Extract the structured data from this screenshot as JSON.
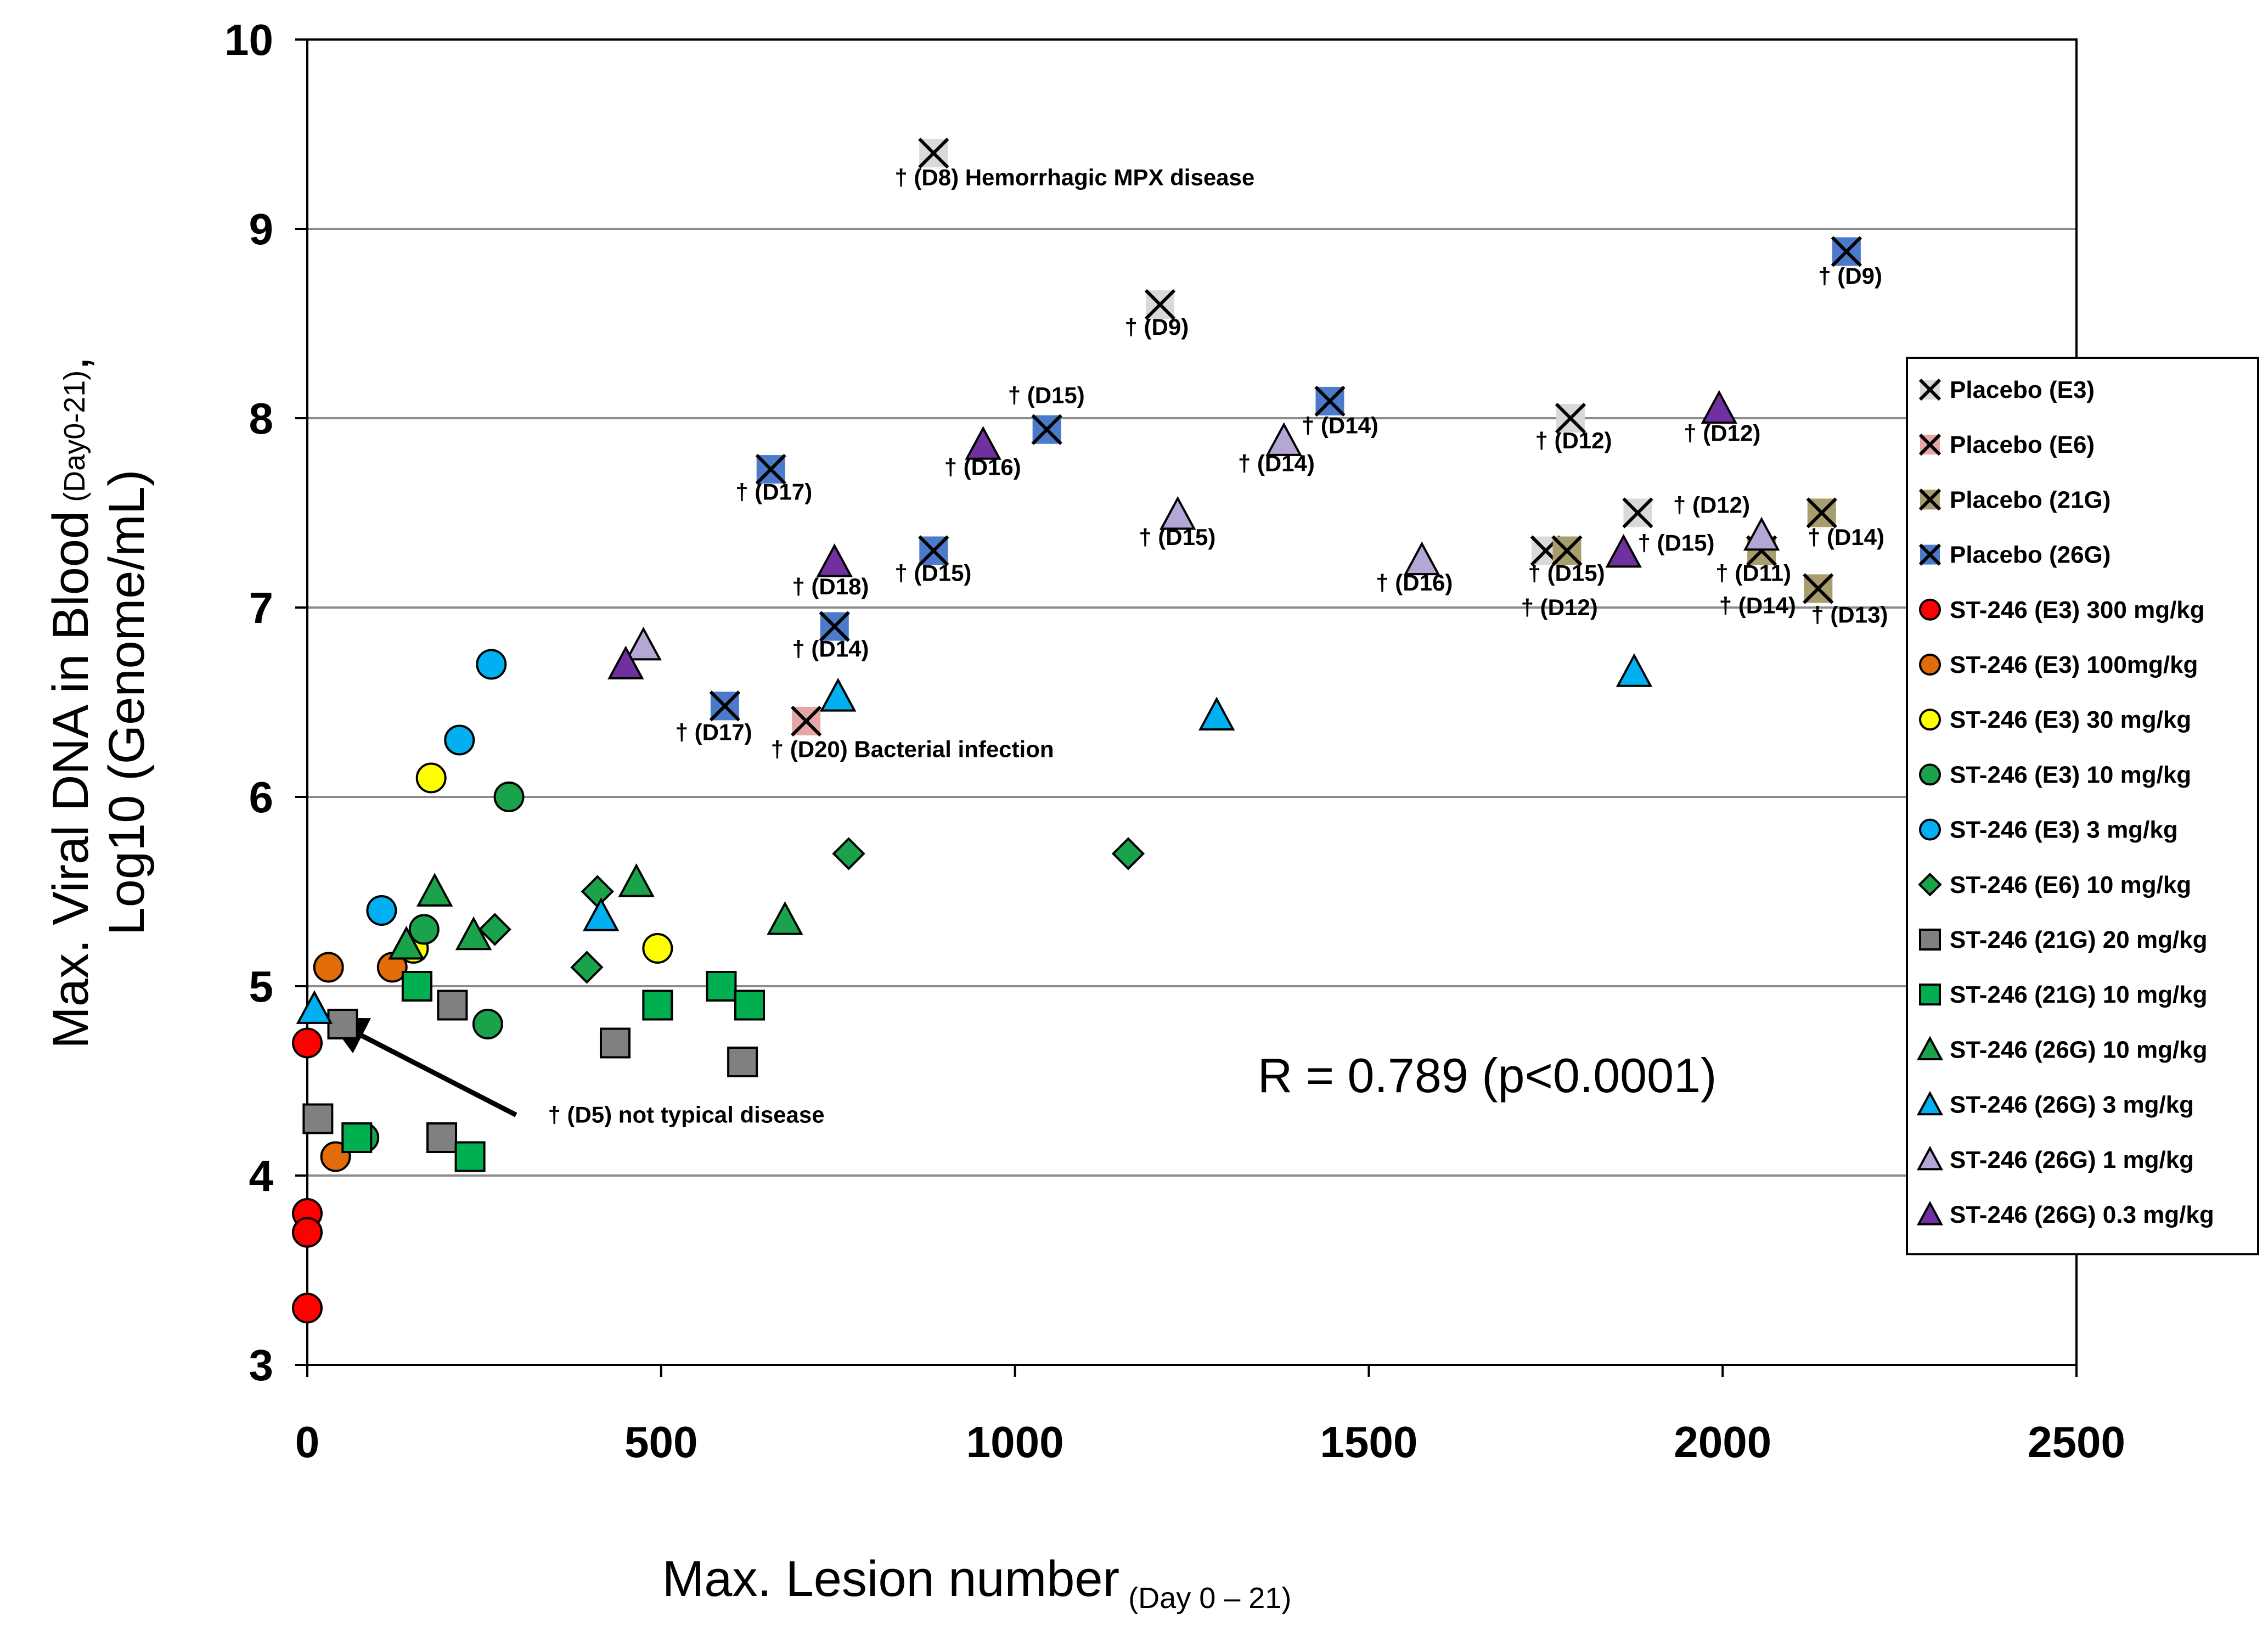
{
  "chart_data": {
    "type": "scatter",
    "xlabel": "Max. Lesion number",
    "xlabel_sub": "(Day 0 – 21)",
    "ylabel_line1": "Max. Viral DNA in Blood",
    "ylabel_line1_sub": "(Day0-21)",
    "ylabel_line1_tail": ",",
    "ylabel_line2": "Log10 (Genome/mL)",
    "xlim": [
      0,
      2500
    ],
    "ylim": [
      3,
      10
    ],
    "x_ticks": [
      0,
      500,
      1000,
      1500,
      2000,
      2500
    ],
    "y_ticks": [
      3,
      4,
      5,
      6,
      7,
      8,
      9,
      10
    ],
    "grid": "horizontal",
    "legend_position": "right",
    "correlation_text": "R = 0.789 (p<0.0001)",
    "series": [
      {
        "name": "Placebo (E3)",
        "marker": "x-square",
        "color": "#d9d9d9",
        "points": [
          [
            885,
            9.4
          ],
          [
            1205,
            8.6
          ],
          [
            1785,
            8.0
          ],
          [
            1880,
            7.5
          ],
          [
            1750,
            7.3
          ]
        ]
      },
      {
        "name": "Placebo (E6)",
        "marker": "x-square",
        "color": "#e6a6a6",
        "points": [
          [
            705,
            6.4
          ]
        ]
      },
      {
        "name": "Placebo (21G)",
        "marker": "x-square",
        "color": "#a89d6d",
        "points": [
          [
            1780,
            7.3
          ],
          [
            2140,
            7.5
          ],
          [
            2055,
            7.3
          ],
          [
            2135,
            7.1
          ]
        ]
      },
      {
        "name": "Placebo (26G)",
        "marker": "x-square",
        "color": "#4a7ac9",
        "points": [
          [
            590,
            6.48
          ],
          [
            655,
            7.73
          ],
          [
            745,
            6.9
          ],
          [
            885,
            7.3
          ],
          [
            1045,
            7.94
          ],
          [
            1445,
            8.09
          ],
          [
            2175,
            8.88
          ]
        ]
      },
      {
        "name": "ST-246 (E3) 300 mg/kg",
        "marker": "circle",
        "color": "#ff0000",
        "points": [
          [
            0,
            4.7
          ],
          [
            0,
            3.8
          ],
          [
            0,
            3.7
          ],
          [
            0,
            3.3
          ]
        ]
      },
      {
        "name": "ST-246 (E3) 100mg/kg",
        "marker": "circle",
        "color": "#e36c0a",
        "points": [
          [
            30,
            5.1
          ],
          [
            40,
            4.1
          ],
          [
            120,
            5.1
          ]
        ]
      },
      {
        "name": "ST-246 (E3) 30 mg/kg",
        "marker": "circle",
        "color": "#ffff00",
        "points": [
          [
            150,
            5.2
          ],
          [
            175,
            6.1
          ],
          [
            495,
            5.2
          ]
        ]
      },
      {
        "name": "ST-246 (E3) 10 mg/kg",
        "marker": "circle",
        "color": "#1aa34a",
        "points": [
          [
            80,
            4.2
          ],
          [
            165,
            5.3
          ],
          [
            255,
            4.8
          ],
          [
            285,
            6.0
          ]
        ]
      },
      {
        "name": "ST-246 (E3) 3 mg/kg",
        "marker": "circle",
        "color": "#00b0f0",
        "points": [
          [
            105,
            5.4
          ],
          [
            215,
            6.3
          ],
          [
            260,
            6.7
          ]
        ]
      },
      {
        "name": "ST-246 (E6) 10 mg/kg",
        "marker": "diamond",
        "color": "#1aa34a",
        "points": [
          [
            265,
            5.3
          ],
          [
            395,
            5.1
          ],
          [
            410,
            5.5
          ],
          [
            765,
            5.7
          ],
          [
            1160,
            5.7
          ]
        ]
      },
      {
        "name": "ST-246 (21G) 20 mg/kg",
        "marker": "square",
        "color": "#808080",
        "points": [
          [
            15,
            4.3
          ],
          [
            50,
            4.8
          ],
          [
            190,
            4.2
          ],
          [
            205,
            4.9
          ],
          [
            435,
            4.7
          ],
          [
            615,
            4.6
          ]
        ]
      },
      {
        "name": "ST-246 (21G) 10 mg/kg",
        "marker": "square",
        "color": "#00b050",
        "points": [
          [
            70,
            4.2
          ],
          [
            155,
            5.0
          ],
          [
            230,
            4.1
          ],
          [
            495,
            4.9
          ],
          [
            585,
            5.0
          ],
          [
            625,
            4.9
          ]
        ]
      },
      {
        "name": "ST-246 (26G) 10 mg/kg",
        "marker": "triangle",
        "color": "#1aa34a",
        "points": [
          [
            140,
            5.22
          ],
          [
            180,
            5.5
          ],
          [
            235,
            5.27
          ],
          [
            465,
            5.55
          ],
          [
            675,
            5.35
          ]
        ]
      },
      {
        "name": "ST-246 (26G) 3 mg/kg",
        "marker": "triangle",
        "color": "#00b0f0",
        "points": [
          [
            10,
            4.88
          ],
          [
            415,
            5.37
          ],
          [
            750,
            6.53
          ],
          [
            1285,
            6.43
          ],
          [
            1875,
            6.66
          ]
        ]
      },
      {
        "name": "ST-246 (26G) 1 mg/kg",
        "marker": "triangle",
        "color": "#b4a7d6",
        "points": [
          [
            475,
            6.8
          ],
          [
            1230,
            7.49
          ],
          [
            1380,
            7.88
          ],
          [
            1575,
            7.25
          ],
          [
            2055,
            7.38
          ]
        ]
      },
      {
        "name": "ST-246 (26G) 0.3 mg/kg",
        "marker": "triangle",
        "color": "#7030a0",
        "points": [
          [
            450,
            6.7
          ],
          [
            745,
            7.24
          ],
          [
            955,
            7.86
          ],
          [
            1860,
            7.29
          ],
          [
            1995,
            8.05
          ]
        ]
      }
    ],
    "annotations": [
      {
        "text": "† (D8) Hemorrhagic MPX disease",
        "x": 830,
        "y": 9.23
      },
      {
        "text": "† (D9)",
        "x": 1155,
        "y": 8.44
      },
      {
        "text": "† (D9)",
        "x": 2135,
        "y": 8.71
      },
      {
        "text": "† (D15)",
        "x": 990,
        "y": 8.08
      },
      {
        "text": "† (D16)",
        "x": 900,
        "y": 7.7
      },
      {
        "text": "† (D17)",
        "x": 605,
        "y": 7.57
      },
      {
        "text": "† (D14)",
        "x": 1405,
        "y": 7.92
      },
      {
        "text": "† (D14)",
        "x": 1315,
        "y": 7.72
      },
      {
        "text": "† (D12)",
        "x": 1735,
        "y": 7.84
      },
      {
        "text": "† (D12)",
        "x": 1945,
        "y": 7.88
      },
      {
        "text": "† (D12)",
        "x": 1930,
        "y": 7.5
      },
      {
        "text": "† (D15)",
        "x": 1175,
        "y": 7.33
      },
      {
        "text": "† (D15)",
        "x": 1880,
        "y": 7.3
      },
      {
        "text": "† (D18)",
        "x": 685,
        "y": 7.07
      },
      {
        "text": "† (D15)",
        "x": 830,
        "y": 7.14
      },
      {
        "text": "† (D16)",
        "x": 1510,
        "y": 7.09
      },
      {
        "text": "† (D15)",
        "x": 1725,
        "y": 7.14
      },
      {
        "text": "† (D12)",
        "x": 1715,
        "y": 6.96
      },
      {
        "text": "† (D11)",
        "x": 1990,
        "y": 7.14
      },
      {
        "text": "† (D14)",
        "x": 1995,
        "y": 6.97
      },
      {
        "text": "† (D14)",
        "x": 2120,
        "y": 7.33
      },
      {
        "text": "† (D13)",
        "x": 2125,
        "y": 6.92
      },
      {
        "text": "† (D14)",
        "x": 685,
        "y": 6.74
      },
      {
        "text": "† (D17)",
        "x": 520,
        "y": 6.3
      },
      {
        "text": "† (D20)  Bacterial  infection",
        "x": 655,
        "y": 6.21
      },
      {
        "text": "† (D5) not typical disease",
        "x": 340,
        "y": 4.28
      }
    ],
    "arrow": {
      "from": [
        295,
        4.32
      ],
      "to": [
        40,
        4.81
      ]
    }
  }
}
